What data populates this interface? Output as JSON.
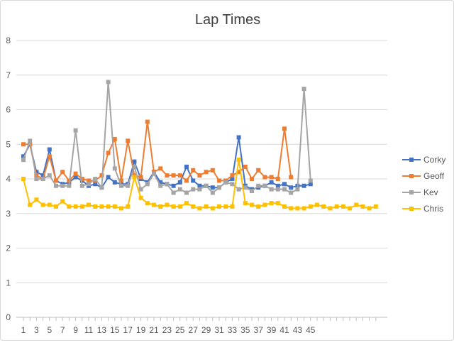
{
  "chart_data": {
    "type": "line",
    "title": "Lap Times",
    "xlabel": "",
    "ylabel": "",
    "ylim": [
      0,
      8
    ],
    "yticks": [
      0,
      1,
      2,
      3,
      4,
      5,
      6,
      7,
      8
    ],
    "x_tick_labels": [
      1,
      3,
      5,
      7,
      9,
      11,
      13,
      15,
      17,
      19,
      21,
      23,
      25,
      27,
      29,
      31,
      33,
      35,
      37,
      39,
      41,
      43,
      45
    ],
    "grid": "horizontal",
    "legend_position": "right",
    "series": [
      {
        "name": "Corky",
        "color": "#4472C4",
        "marker": "square",
        "values": [
          4.65,
          5.0,
          4.2,
          4.1,
          4.85,
          3.95,
          3.85,
          3.9,
          4.05,
          3.95,
          3.8,
          3.85,
          3.75,
          4.05,
          3.9,
          3.85,
          3.85,
          4.5,
          4.0,
          3.9,
          4.2,
          3.9,
          3.85,
          3.8,
          3.9,
          4.35,
          3.95,
          3.8,
          3.8,
          3.75,
          3.75,
          3.9,
          4.0,
          5.2,
          3.8,
          3.7,
          3.75,
          3.8,
          3.9,
          3.8,
          3.85,
          3.75,
          3.8,
          3.8,
          3.85
        ]
      },
      {
        "name": "Geoff",
        "color": "#ED7D31",
        "marker": "square",
        "values": [
          5.0,
          5.0,
          4.1,
          4.0,
          4.65,
          3.95,
          4.2,
          3.95,
          4.15,
          4.0,
          3.95,
          3.95,
          4.1,
          4.75,
          5.15,
          3.95,
          5.1,
          4.1,
          4.05,
          5.65,
          4.2,
          4.3,
          4.1,
          4.1,
          4.1,
          3.95,
          4.25,
          4.1,
          4.2,
          4.25,
          3.95,
          3.95,
          4.1,
          4.2,
          4.35,
          4.0,
          4.25,
          4.05,
          4.05,
          4.0,
          5.45,
          4.05
        ]
      },
      {
        "name": "Kev",
        "color": "#A5A5A5",
        "marker": "square",
        "values": [
          4.55,
          5.1,
          4.0,
          4.0,
          4.1,
          3.8,
          3.8,
          3.8,
          5.4,
          3.8,
          3.85,
          4.0,
          3.75,
          6.8,
          4.3,
          3.8,
          3.8,
          4.35,
          3.7,
          3.85,
          4.15,
          3.8,
          3.85,
          3.6,
          3.7,
          3.6,
          3.7,
          3.7,
          3.8,
          3.6,
          3.75,
          3.9,
          3.85,
          3.7,
          3.75,
          3.65,
          3.8,
          3.8,
          3.7,
          3.7,
          3.7,
          3.6,
          3.7,
          6.6,
          3.95
        ]
      },
      {
        "name": "Chris",
        "color": "#FFC000",
        "marker": "square",
        "values": [
          4.0,
          3.25,
          3.4,
          3.25,
          3.25,
          3.2,
          3.35,
          3.2,
          3.2,
          3.2,
          3.25,
          3.2,
          3.2,
          3.2,
          3.2,
          3.15,
          3.2,
          4.05,
          3.45,
          3.3,
          3.25,
          3.2,
          3.25,
          3.2,
          3.2,
          3.3,
          3.2,
          3.15,
          3.2,
          3.15,
          3.2,
          3.2,
          3.2,
          4.55,
          3.3,
          3.25,
          3.2,
          3.25,
          3.3,
          3.3,
          3.2,
          3.15,
          3.15,
          3.15,
          3.2,
          3.25,
          3.2,
          3.15,
          3.2,
          3.2,
          3.15,
          3.25,
          3.2,
          3.15,
          3.2
        ]
      }
    ]
  }
}
